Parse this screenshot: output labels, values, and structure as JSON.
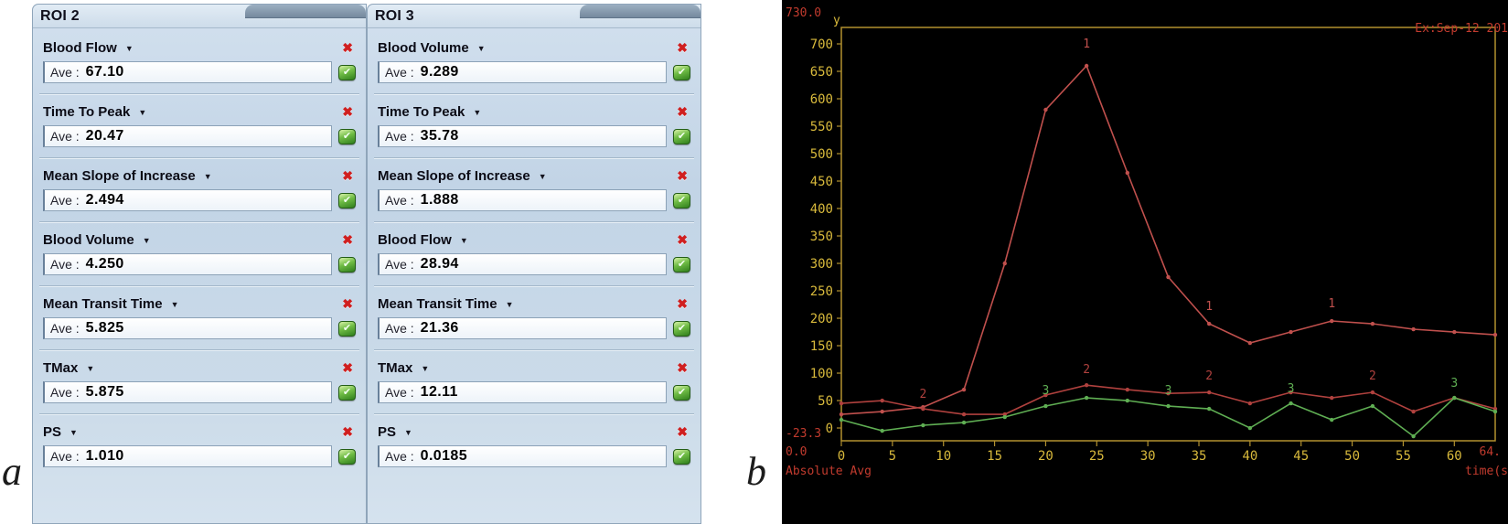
{
  "figure": {
    "panel_a_label": "a",
    "panel_b_label": "b"
  },
  "labels": {
    "ave_prefix": "Ave :"
  },
  "icons": {
    "dropdown": "▼",
    "remove": "✖",
    "check": "✔"
  },
  "roi_panels": [
    {
      "title": "ROI 2",
      "params": [
        {
          "label": "Blood Flow",
          "value": "67.10"
        },
        {
          "label": "Time To Peak",
          "value": "20.47"
        },
        {
          "label": "Mean Slope of Increase",
          "value": "2.494"
        },
        {
          "label": "Blood Volume",
          "value": "4.250"
        },
        {
          "label": "Mean Transit Time",
          "value": "5.825"
        },
        {
          "label": "TMax",
          "value": "5.875"
        },
        {
          "label": "PS",
          "value": "1.010"
        }
      ]
    },
    {
      "title": "ROI 3",
      "params": [
        {
          "label": "Blood Volume",
          "value": "9.289"
        },
        {
          "label": "Time To Peak",
          "value": "35.78"
        },
        {
          "label": "Mean Slope of Increase",
          "value": "1.888"
        },
        {
          "label": "Blood Flow",
          "value": "28.94"
        },
        {
          "label": "Mean Transit Time",
          "value": "21.36"
        },
        {
          "label": "TMax",
          "value": "12.11"
        },
        {
          "label": "PS",
          "value": "0.0185"
        }
      ]
    }
  ],
  "chart_data": {
    "type": "line",
    "title": "",
    "y_axis_name": "y",
    "x_axis_name": "time(s",
    "y_max_label": "730.0",
    "y_min_label": "-23.3",
    "x_min_label": "0.0",
    "x_max_label": "64.",
    "top_right_label": "Ex:Sep-12 201",
    "bottom_left_label": "Absolute Avg",
    "xlim": [
      0,
      64
    ],
    "ylim": [
      -23.3,
      730
    ],
    "x_ticks": [
      0,
      5,
      10,
      15,
      20,
      25,
      30,
      35,
      40,
      45,
      50,
      55,
      60
    ],
    "y_ticks": [
      0,
      50,
      100,
      150,
      200,
      250,
      300,
      350,
      400,
      450,
      500,
      550,
      600,
      650,
      700
    ],
    "grid": false,
    "legend": "none",
    "colors": {
      "frame": "#b2912f",
      "tick_text": "#d9ba3c",
      "red_label": "#c23b2e"
    },
    "x": [
      0,
      4,
      8,
      12,
      16,
      20,
      24,
      28,
      32,
      36,
      40,
      44,
      48,
      52,
      56,
      60,
      64
    ],
    "series": [
      {
        "name": "1",
        "color": "#c0504d",
        "values": [
          25,
          30,
          38,
          70,
          300,
          580,
          660,
          465,
          275,
          190,
          155,
          175,
          195,
          190,
          180,
          175,
          170
        ],
        "point_labels": [
          {
            "x": 24,
            "y": 693,
            "text": "1"
          },
          {
            "x": 36,
            "y": 215,
            "text": "1"
          },
          {
            "x": 48,
            "y": 220,
            "text": "1"
          }
        ]
      },
      {
        "name": "2",
        "color": "#b0413e",
        "values": [
          45,
          50,
          35,
          25,
          25,
          60,
          78,
          70,
          63,
          65,
          45,
          65,
          55,
          65,
          30,
          55,
          35
        ],
        "point_labels": [
          {
            "x": 8,
            "y": 55,
            "text": "2"
          },
          {
            "x": 24,
            "y": 100,
            "text": "2"
          },
          {
            "x": 36,
            "y": 88,
            "text": "2"
          },
          {
            "x": 52,
            "y": 88,
            "text": "2"
          }
        ]
      },
      {
        "name": "3",
        "color": "#5fae53",
        "values": [
          15,
          -5,
          5,
          10,
          20,
          40,
          55,
          50,
          40,
          35,
          0,
          45,
          15,
          40,
          -15,
          55,
          30
        ],
        "point_labels": [
          {
            "x": 20,
            "y": 62,
            "text": "3"
          },
          {
            "x": 32,
            "y": 62,
            "text": "3"
          },
          {
            "x": 44,
            "y": 65,
            "text": "3"
          },
          {
            "x": 60,
            "y": 75,
            "text": "3"
          }
        ]
      }
    ]
  }
}
